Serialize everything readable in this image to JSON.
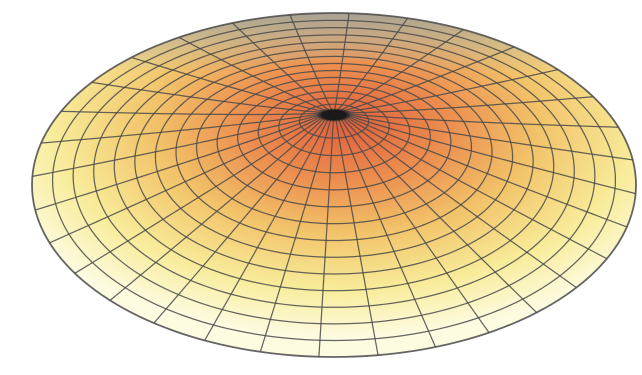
{
  "figure": {
    "shape": "polar-mesh-surface",
    "radial_rings": 14,
    "angular_spokes": 32,
    "colormap": [
      "#fdfbe0",
      "#f8ec9a",
      "#f2c46a",
      "#ec9050",
      "#e05e3a"
    ],
    "center_color": "#1a1a1a",
    "far_rim_color": "#9a9a9a",
    "wire_color": "#4a4a4a"
  }
}
